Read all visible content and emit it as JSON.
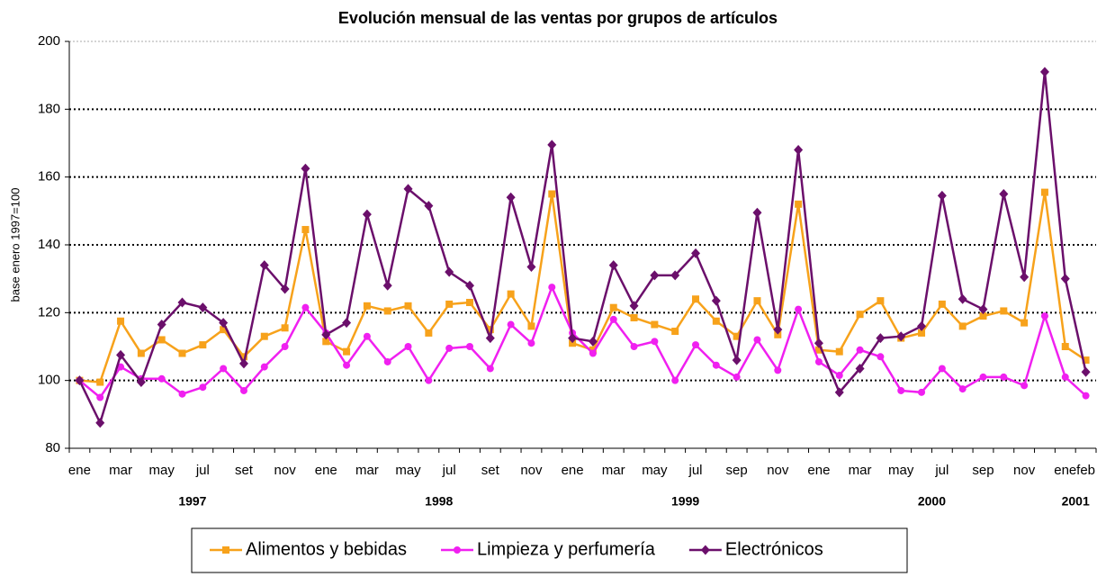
{
  "chart_data": {
    "type": "line",
    "title": "Evolución mensual de las ventas por grupos de artículos",
    "y_label": "base enero 1997=100",
    "categories": [
      "ene",
      null,
      "mar",
      null,
      "may",
      null,
      "jul",
      null,
      "set",
      null,
      "nov",
      null,
      "ene",
      null,
      "mar",
      null,
      "may",
      null,
      "jul",
      null,
      "set",
      null,
      "nov",
      null,
      "ene",
      null,
      "mar",
      null,
      "may",
      null,
      "jul",
      null,
      "sep",
      null,
      "nov",
      null,
      "ene",
      null,
      "mar",
      null,
      "may",
      null,
      "jul",
      null,
      "sep",
      null,
      "nov",
      null,
      "ene",
      "feb"
    ],
    "years": [
      "1997",
      "1998",
      "1999",
      "2000",
      "2001"
    ],
    "ylim": [
      80,
      200
    ],
    "yticks": [
      80,
      100,
      120,
      140,
      160,
      180,
      200
    ],
    "grid": true,
    "legend": "bottom",
    "series": [
      {
        "name": "Alimentos y bebidas",
        "color": "#f7a21b",
        "marker": "square",
        "values": [
          100,
          99.5,
          117.5,
          108,
          112,
          108,
          110.5,
          115,
          107,
          113,
          115.5,
          144.5,
          111.5,
          108.5,
          122,
          120.5,
          122,
          114,
          122.5,
          123,
          115,
          125.5,
          116,
          155,
          111,
          109,
          121.5,
          118.5,
          116.5,
          114.5,
          124,
          117.5,
          113,
          123.5,
          113.5,
          152,
          109,
          108.5,
          119.5,
          123.5,
          112.5,
          114,
          122.5,
          116,
          119,
          120.5,
          117,
          155.5,
          110,
          106
        ]
      },
      {
        "name": "Limpieza y perfumería",
        "color": "#f020f0",
        "marker": "circle",
        "values": [
          100,
          95,
          104,
          100.5,
          100.5,
          96,
          98,
          103.5,
          97,
          104,
          110,
          121.5,
          114,
          104.5,
          113,
          105.5,
          110,
          100,
          109.5,
          110,
          103.5,
          116.5,
          111,
          127.5,
          114,
          108,
          118,
          110,
          111.5,
          100,
          110.5,
          104.5,
          101,
          112,
          103,
          121,
          105.5,
          101.5,
          109,
          107,
          97,
          96.5,
          103.5,
          97.5,
          101,
          101,
          98.5,
          119,
          101,
          95.5
        ]
      },
      {
        "name": "Electrónicos",
        "color": "#6b0f6b",
        "marker": "diamond",
        "values": [
          100,
          87.5,
          107.5,
          99.5,
          116.5,
          123,
          121.5,
          117,
          105,
          134,
          127,
          162.5,
          113.5,
          117,
          149,
          128,
          156.5,
          151.5,
          132,
          128,
          112.5,
          154,
          133.5,
          169.5,
          112.5,
          111.5,
          134,
          122,
          131,
          131,
          137.5,
          123.5,
          106,
          149.5,
          115,
          168,
          111,
          96.5,
          103.5,
          112.5,
          113,
          116,
          154.5,
          124,
          121,
          155,
          130.5,
          191,
          130,
          102.5
        ]
      }
    ]
  }
}
